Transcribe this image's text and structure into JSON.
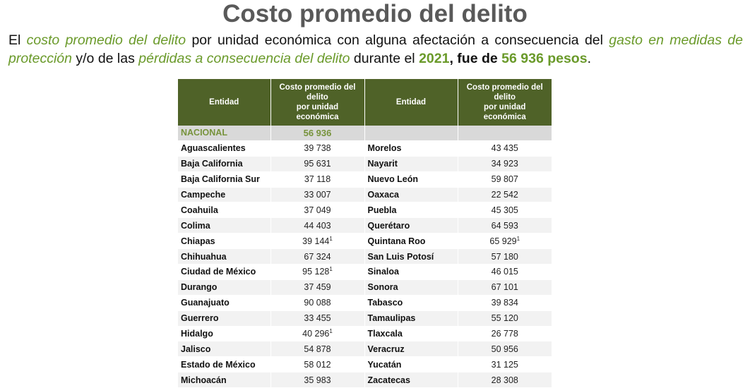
{
  "title": "Costo promedio del delito",
  "intro": {
    "p1": "El ",
    "p2": "costo promedio del delito",
    "p3": " por unidad económica con alguna afectación a consecuencia del ",
    "p4": "gasto en medidas de protección",
    "p5": " y/o de las ",
    "p6": "pérdidas a consecuencia del delito",
    "p7": " durante el ",
    "p8": "2021",
    "p9": ", fue de ",
    "p10": "56 936 pesos",
    "p11": "."
  },
  "table": {
    "headers": {
      "entity": "Entidad",
      "cost_l1": "Costo promedio del",
      "cost_l2": "delito",
      "cost_l3": "por unidad",
      "cost_l4": "económica"
    },
    "national": {
      "label": "NACIONAL",
      "value": "56 936"
    },
    "rows": [
      {
        "e1": "Aguascalientes",
        "v1": "39 738",
        "n1": "",
        "e2": "Morelos",
        "v2": "43 435",
        "n2": ""
      },
      {
        "e1": "Baja California",
        "v1": "95 631",
        "n1": "",
        "e2": "Nayarit",
        "v2": "34 923",
        "n2": ""
      },
      {
        "e1": "Baja California Sur",
        "v1": "37 118",
        "n1": "",
        "e2": "Nuevo León",
        "v2": "59 807",
        "n2": ""
      },
      {
        "e1": "Campeche",
        "v1": "33 007",
        "n1": "",
        "e2": "Oaxaca",
        "v2": "22 542",
        "n2": ""
      },
      {
        "e1": "Coahuila",
        "v1": "37 049",
        "n1": "",
        "e2": "Puebla",
        "v2": "45 305",
        "n2": ""
      },
      {
        "e1": "Colima",
        "v1": "44 403",
        "n1": "",
        "e2": "Querétaro",
        "v2": "64 593",
        "n2": ""
      },
      {
        "e1": "Chiapas",
        "v1": "39 144",
        "n1": "1",
        "e2": "Quintana Roo",
        "v2": "65 929",
        "n2": "1"
      },
      {
        "e1": "Chihuahua",
        "v1": "67 324",
        "n1": "",
        "e2": "San Luis Potosí",
        "v2": "57 180",
        "n2": ""
      },
      {
        "e1": "Ciudad de México",
        "v1": "95 128",
        "n1": "1",
        "e2": "Sinaloa",
        "v2": "46 015",
        "n2": ""
      },
      {
        "e1": "Durango",
        "v1": "37 459",
        "n1": "",
        "e2": "Sonora",
        "v2": "67 101",
        "n2": ""
      },
      {
        "e1": "Guanajuato",
        "v1": "90 088",
        "n1": "",
        "e2": "Tabasco",
        "v2": "39 834",
        "n2": ""
      },
      {
        "e1": "Guerrero",
        "v1": "33 455",
        "n1": "",
        "e2": "Tamaulipas",
        "v2": "55 120",
        "n2": ""
      },
      {
        "e1": "Hidalgo",
        "v1": "40 296",
        "n1": "1",
        "e2": "Tlaxcala",
        "v2": "26 778",
        "n2": ""
      },
      {
        "e1": "Jalisco",
        "v1": "54 878",
        "n1": "",
        "e2": "Veracruz",
        "v2": "50 956",
        "n2": ""
      },
      {
        "e1": "Estado de México",
        "v1": "58 012",
        "n1": "",
        "e2": "Yucatán",
        "v2": "31 125",
        "n2": ""
      },
      {
        "e1": "Michoacán",
        "v1": "35 983",
        "n1": "",
        "e2": "Zacatecas",
        "v2": "28 308",
        "n2": ""
      }
    ]
  },
  "colors": {
    "header_bg": "#4f6228",
    "accent_green": "#77933c",
    "title_gray": "#595959",
    "national_bg": "#d9d9d9",
    "zebra": "#f2f2f2"
  }
}
